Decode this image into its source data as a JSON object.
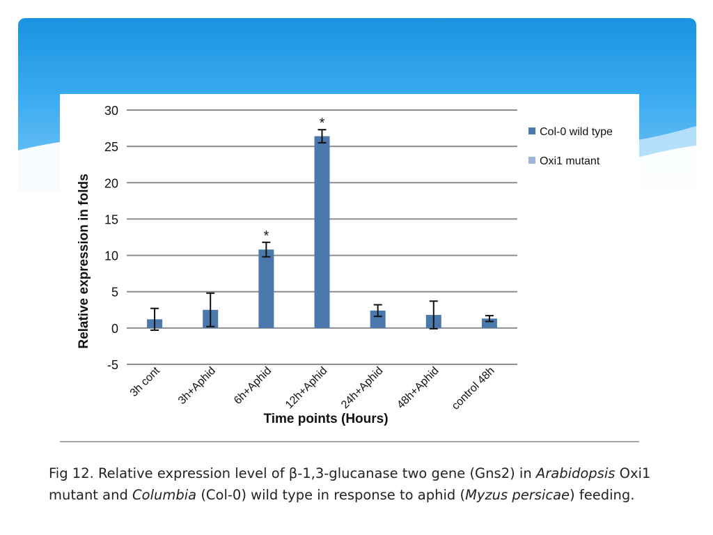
{
  "colors": {
    "series_wild": "#4a78ad",
    "series_mutant": "#9eb4d8",
    "gridline": "#8c8c8c",
    "banner_top": "#1a93e0",
    "banner_bottom": "#7ccaf6"
  },
  "chart_data": {
    "type": "bar",
    "title": "",
    "xlabel": "Time points (Hours)",
    "ylabel": "Relative expression in folds",
    "ylim": [
      -5,
      30
    ],
    "yticks": [
      -5,
      0,
      5,
      10,
      15,
      20,
      25,
      30
    ],
    "grid": true,
    "legend_position": "right",
    "categories": [
      "3h cont",
      "3h+Aphid",
      "6h+Aphid",
      "12h+Aphid",
      "24h+Aphid",
      "48h+Aphid",
      "control 48h"
    ],
    "series": [
      {
        "name": "Col-0 wild type",
        "values": [
          1.2,
          2.5,
          10.8,
          26.4,
          2.4,
          1.8,
          1.3
        ],
        "error": [
          1.5,
          2.3,
          1.0,
          0.9,
          0.8,
          1.9,
          0.4
        ],
        "significance": [
          "",
          "",
          "*",
          "*",
          "",
          "",
          ""
        ]
      },
      {
        "name": "Oxi1 mutant",
        "values": [
          null,
          null,
          null,
          null,
          null,
          null,
          null
        ]
      }
    ]
  },
  "caption": {
    "part1": "Fig 12. Relative expression level of β-1,3-glucanase two gene (Gns2) in ",
    "species1": "Arabidopsis",
    "part2": " Oxi1 mutant and ",
    "species2": "Columbia",
    "part3": " (Col-0) wild type in response to aphid (",
    "species3": "Myzus persicae",
    "part4": ") feeding."
  }
}
